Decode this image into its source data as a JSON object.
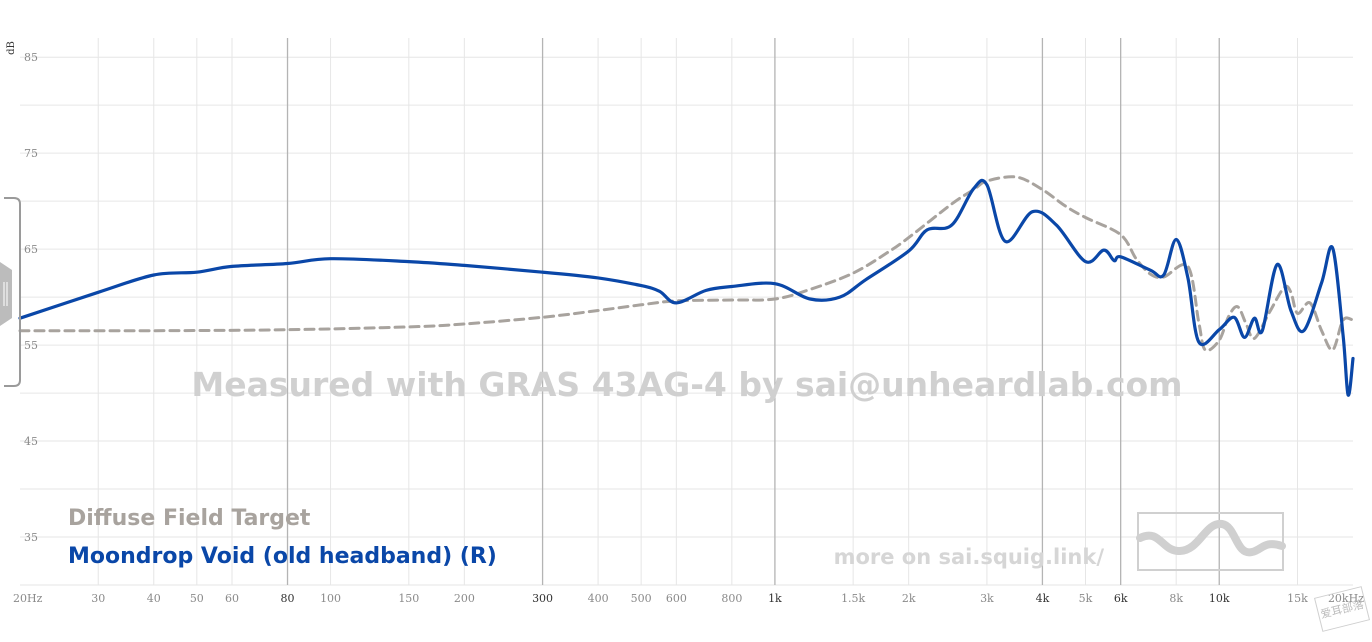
{
  "y_axis_label": "dB",
  "watermark_text": "Measured with GRAS 43AG-4 by sai@unheardlab.com",
  "more_on_text": "more on sai.squig.link/",
  "corner_mark_text": "爱耳部落",
  "colors": {
    "target": "#a8a39e",
    "measurement": "#0a47a8",
    "grid_minor": "#e6e6e6",
    "grid_major": "#b4b4b4"
  },
  "chart_data": {
    "type": "line",
    "title": "",
    "xlabel": "",
    "ylabel": "dB",
    "x_scale": "log",
    "xlim": [
      20,
      20000
    ],
    "ylim": [
      30,
      87
    ],
    "y_ticks": [
      85,
      75,
      65,
      55,
      45,
      35
    ],
    "x_ticks": [
      {
        "value": 20,
        "label": "20Hz"
      },
      {
        "value": 30,
        "label": "30"
      },
      {
        "value": 40,
        "label": "40"
      },
      {
        "value": 50,
        "label": "50"
      },
      {
        "value": 60,
        "label": "60"
      },
      {
        "value": 80,
        "label": "80"
      },
      {
        "value": 100,
        "label": "100"
      },
      {
        "value": 150,
        "label": "150"
      },
      {
        "value": 200,
        "label": "200"
      },
      {
        "value": 300,
        "label": "300"
      },
      {
        "value": 400,
        "label": "400"
      },
      {
        "value": 500,
        "label": "500"
      },
      {
        "value": 600,
        "label": "600"
      },
      {
        "value": 800,
        "label": "800"
      },
      {
        "value": 1000,
        "label": "1k"
      },
      {
        "value": 1500,
        "label": "1.5k"
      },
      {
        "value": 2000,
        "label": "2k"
      },
      {
        "value": 3000,
        "label": "3k"
      },
      {
        "value": 4000,
        "label": "4k"
      },
      {
        "value": 5000,
        "label": "5k"
      },
      {
        "value": 6000,
        "label": "6k"
      },
      {
        "value": 8000,
        "label": "8k"
      },
      {
        "value": 10000,
        "label": "10k"
      },
      {
        "value": 15000,
        "label": "15k"
      },
      {
        "value": 20000,
        "label": "20kHz"
      }
    ],
    "major_x_ticks": [
      80,
      300,
      1000,
      4000,
      6000,
      10000
    ],
    "series": [
      {
        "name": "Diffuse Field Target",
        "style": "dashed",
        "points": [
          [
            20,
            56.5
          ],
          [
            40,
            56.5
          ],
          [
            80,
            56.6
          ],
          [
            150,
            56.9
          ],
          [
            200,
            57.2
          ],
          [
            300,
            57.9
          ],
          [
            400,
            58.6
          ],
          [
            500,
            59.2
          ],
          [
            600,
            59.6
          ],
          [
            800,
            59.7
          ],
          [
            1000,
            59.8
          ],
          [
            1200,
            60.8
          ],
          [
            1500,
            62.5
          ],
          [
            1800,
            64.7
          ],
          [
            2000,
            66.2
          ],
          [
            2500,
            69.7
          ],
          [
            2800,
            71.2
          ],
          [
            3000,
            72.1
          ],
          [
            3500,
            72.5
          ],
          [
            4000,
            71.2
          ],
          [
            4500,
            69.5
          ],
          [
            5000,
            68.3
          ],
          [
            6000,
            66.5
          ],
          [
            6500,
            64.0
          ],
          [
            7000,
            62.4
          ],
          [
            7500,
            62.1
          ],
          [
            8500,
            63.2
          ],
          [
            9000,
            57.3
          ],
          [
            9300,
            54.5
          ],
          [
            10000,
            55.5
          ],
          [
            10500,
            58.0
          ],
          [
            11000,
            59.0
          ],
          [
            11500,
            57.2
          ],
          [
            12000,
            55.7
          ],
          [
            13000,
            58.5
          ],
          [
            14000,
            61.0
          ],
          [
            14500,
            60.5
          ],
          [
            15000,
            58.3
          ],
          [
            16000,
            59.4
          ],
          [
            17000,
            56.5
          ],
          [
            18000,
            54.5
          ],
          [
            19000,
            57.6
          ],
          [
            20000,
            57.6
          ]
        ]
      },
      {
        "name": "Moondrop Void (old headband) (R)",
        "style": "solid",
        "points": [
          [
            20,
            57.8
          ],
          [
            30,
            60.5
          ],
          [
            40,
            62.3
          ],
          [
            50,
            62.6
          ],
          [
            60,
            63.2
          ],
          [
            80,
            63.5
          ],
          [
            100,
            64.0
          ],
          [
            150,
            63.7
          ],
          [
            200,
            63.3
          ],
          [
            300,
            62.6
          ],
          [
            400,
            62.0
          ],
          [
            500,
            61.2
          ],
          [
            550,
            60.6
          ],
          [
            600,
            59.4
          ],
          [
            700,
            60.7
          ],
          [
            800,
            61.1
          ],
          [
            1000,
            61.4
          ],
          [
            1200,
            59.8
          ],
          [
            1400,
            60.0
          ],
          [
            1600,
            61.8
          ],
          [
            2000,
            64.8
          ],
          [
            2200,
            67.0
          ],
          [
            2500,
            67.5
          ],
          [
            2800,
            71.3
          ],
          [
            3000,
            71.7
          ],
          [
            3300,
            65.8
          ],
          [
            3800,
            68.9
          ],
          [
            4300,
            67.5
          ],
          [
            5000,
            63.7
          ],
          [
            5500,
            64.9
          ],
          [
            5800,
            63.8
          ],
          [
            6000,
            64.2
          ],
          [
            7000,
            62.8
          ],
          [
            7500,
            62.3
          ],
          [
            8000,
            66.0
          ],
          [
            8500,
            62.0
          ],
          [
            9000,
            55.3
          ],
          [
            10000,
            56.6
          ],
          [
            10800,
            57.9
          ],
          [
            11400,
            55.8
          ],
          [
            12000,
            57.8
          ],
          [
            12500,
            56.5
          ],
          [
            13500,
            63.4
          ],
          [
            14500,
            58.6
          ],
          [
            15500,
            56.5
          ],
          [
            17000,
            61.5
          ],
          [
            18000,
            65.1
          ],
          [
            19000,
            56.0
          ],
          [
            19500,
            49.8
          ],
          [
            20000,
            53.6
          ]
        ]
      }
    ]
  }
}
